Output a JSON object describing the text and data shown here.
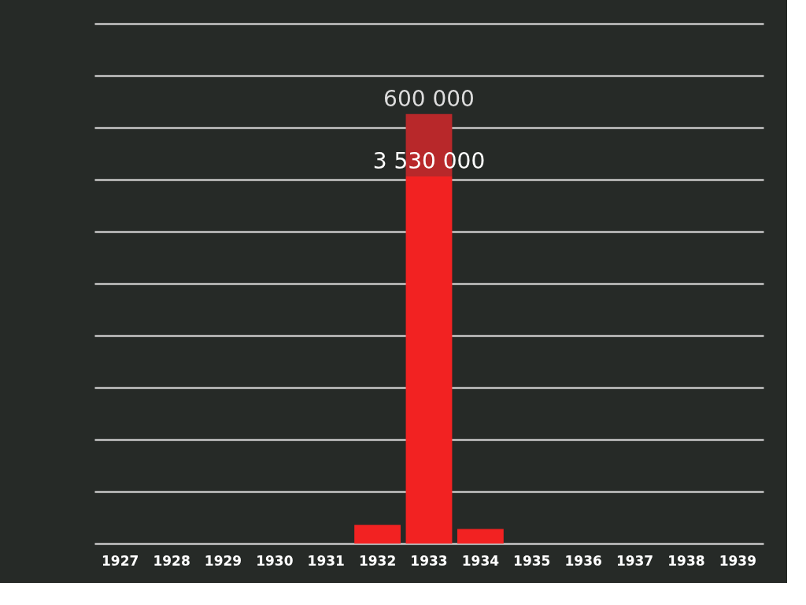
{
  "chart_data": {
    "type": "bar",
    "stacked": true,
    "categories": [
      "1927",
      "1928",
      "1929",
      "1930",
      "1931",
      "1932",
      "1933",
      "1934",
      "1935",
      "1936",
      "1937",
      "1938",
      "1939"
    ],
    "series": [
      {
        "color": "#f22222",
        "values": [
          0,
          0,
          0,
          0,
          0,
          180000,
          3530000,
          140000,
          0,
          0,
          0,
          0,
          0
        ],
        "value_labels": [
          null,
          null,
          null,
          null,
          null,
          null,
          "3 530 000",
          null,
          null,
          null,
          null,
          null,
          null
        ]
      },
      {
        "color": "#b8282a",
        "values": [
          0,
          0,
          0,
          0,
          0,
          0,
          600000,
          0,
          0,
          0,
          0,
          0,
          0
        ],
        "value_labels": [
          null,
          null,
          null,
          null,
          null,
          null,
          "600 000",
          null,
          null,
          null,
          null,
          null,
          null
        ]
      }
    ],
    "ylim": [
      0,
      5000000
    ],
    "yticks": [
      {
        "value": 0,
        "label": null
      },
      {
        "value": 500000,
        "label": null
      },
      {
        "value": 1000000,
        "label": null
      },
      {
        "value": 1500000,
        "label": null
      },
      {
        "value": 2000000,
        "label": null
      },
      {
        "value": 2500000,
        "label": null
      },
      {
        "value": 3000000,
        "label": null
      },
      {
        "value": 3500000,
        "label": null
      },
      {
        "value": 4000000,
        "label": null
      },
      {
        "value": 4500000,
        "label": null
      },
      {
        "value": 5000000,
        "label": null
      }
    ],
    "grid": "y",
    "tick_labels": "x"
  }
}
